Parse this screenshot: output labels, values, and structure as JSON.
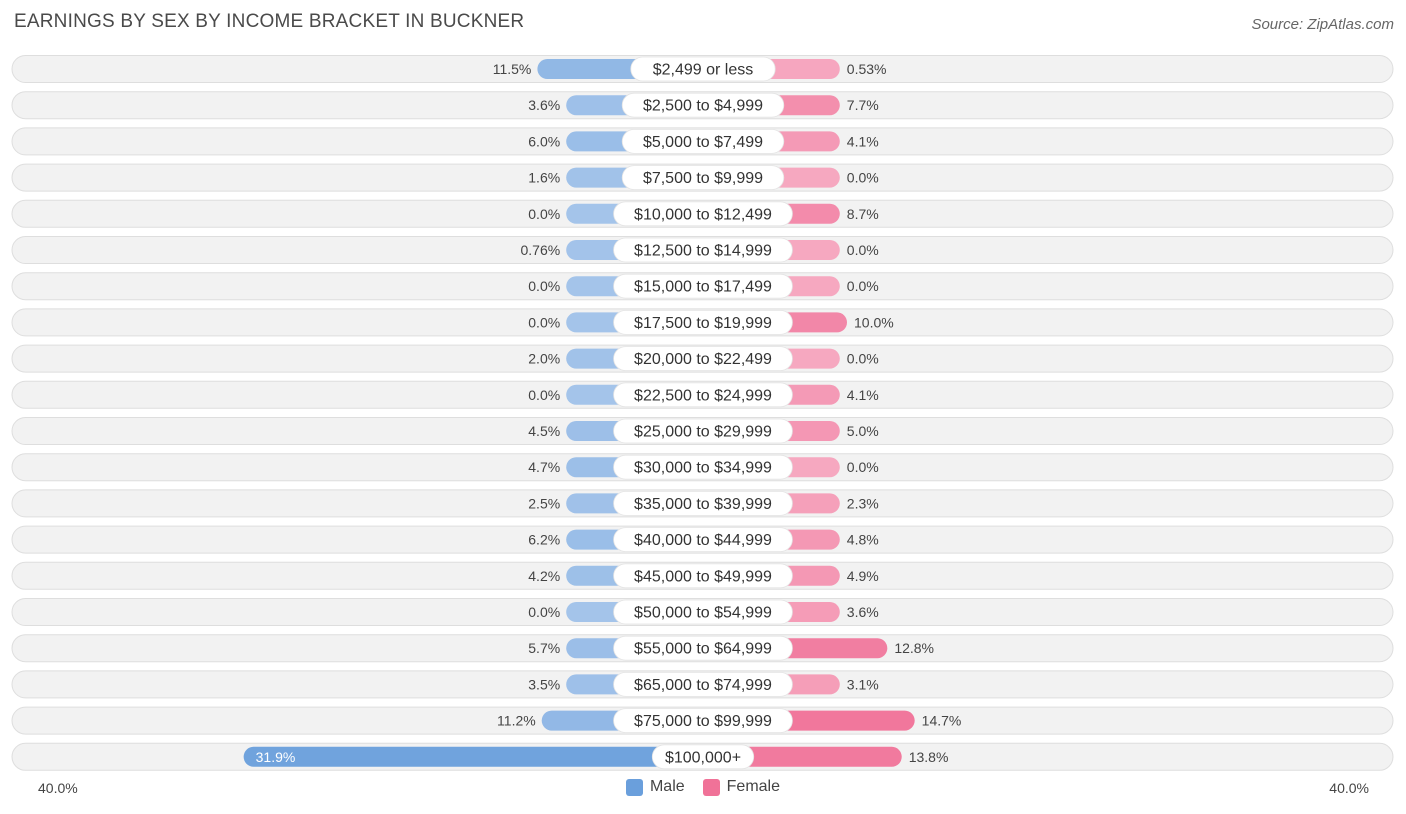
{
  "title": "EARNINGS BY SEX BY INCOME BRACKET IN BUCKNER",
  "source": "Source: ZipAtlas.com",
  "colors": {
    "male": "#a4c4ea",
    "male_strong": "#6a9fdc",
    "female": "#f6a8c0",
    "female_strong": "#f07298",
    "row_bg": "#f2f2f2",
    "row_border": "#dedede"
  },
  "legend": {
    "male": "Male",
    "female": "Female"
  },
  "axis": {
    "left_label": "40.0%",
    "right_label": "40.0%"
  },
  "chart_data": {
    "type": "bar",
    "orientation": "horizontal-diverging",
    "xlim": [
      -40,
      40
    ],
    "categories": [
      "$2,499 or less",
      "$2,500 to $4,999",
      "$5,000 to $7,499",
      "$7,500 to $9,999",
      "$10,000 to $12,499",
      "$12,500 to $14,999",
      "$15,000 to $17,499",
      "$17,500 to $19,999",
      "$20,000 to $22,499",
      "$22,500 to $24,999",
      "$25,000 to $29,999",
      "$30,000 to $34,999",
      "$35,000 to $39,999",
      "$40,000 to $44,999",
      "$45,000 to $49,999",
      "$50,000 to $54,999",
      "$55,000 to $64,999",
      "$65,000 to $74,999",
      "$75,000 to $99,999",
      "$100,000+"
    ],
    "series": [
      {
        "name": "Male",
        "values": [
          11.5,
          3.6,
          6.0,
          1.6,
          0.0,
          0.76,
          0.0,
          0.0,
          2.0,
          0.0,
          4.5,
          4.7,
          2.5,
          6.2,
          4.2,
          0.0,
          5.7,
          3.5,
          11.2,
          31.9
        ],
        "labels": [
          "11.5%",
          "3.6%",
          "6.0%",
          "1.6%",
          "0.0%",
          "0.76%",
          "0.0%",
          "0.0%",
          "2.0%",
          "0.0%",
          "4.5%",
          "4.7%",
          "2.5%",
          "6.2%",
          "4.2%",
          "0.0%",
          "5.7%",
          "3.5%",
          "11.2%",
          "31.9%"
        ]
      },
      {
        "name": "Female",
        "values": [
          0.53,
          7.7,
          4.1,
          0.0,
          8.7,
          0.0,
          0.0,
          10.0,
          0.0,
          4.1,
          5.0,
          0.0,
          2.3,
          4.8,
          4.9,
          3.6,
          12.8,
          3.1,
          14.7,
          13.8
        ],
        "labels": [
          "0.53%",
          "7.7%",
          "4.1%",
          "0.0%",
          "8.7%",
          "0.0%",
          "0.0%",
          "10.0%",
          "0.0%",
          "4.1%",
          "5.0%",
          "0.0%",
          "2.3%",
          "4.8%",
          "4.9%",
          "3.6%",
          "12.8%",
          "3.1%",
          "14.7%",
          "13.8%"
        ]
      }
    ]
  }
}
